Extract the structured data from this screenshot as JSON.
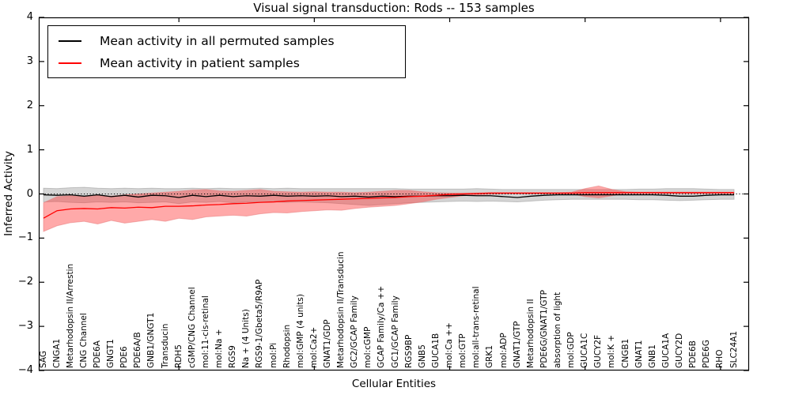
{
  "title": "Visual signal transduction: Rods -- 153 samples",
  "legend": {
    "items": [
      {
        "label": "Mean activity in all permuted samples",
        "color": "#000000"
      },
      {
        "label": "Mean activity in patient samples",
        "color": "#ff0000"
      }
    ]
  },
  "axes": {
    "ylabel": "Inferred Activity",
    "xlabel": "Cellular Entities",
    "yticklabels": [
      "4",
      "3",
      "2",
      "1",
      "0",
      "−1",
      "−2",
      "−3",
      "−4"
    ]
  },
  "chart_data": {
    "type": "line",
    "title": "Visual signal transduction: Rods -- 153 samples",
    "xlabel": "Cellular Entities",
    "ylabel": "Inferred Activity",
    "ylim": [
      -4,
      4
    ],
    "grid": false,
    "legend_position": "upper left",
    "zero_line": {
      "style": "dotted",
      "color": "#000000",
      "y": 0
    },
    "top_tick_indices": [
      10,
      20,
      30,
      40,
      50
    ],
    "categories": [
      "SAG",
      "CNGA1",
      "Metarhodopsin II/Arrestin",
      "CNG Channel",
      "PDE6A",
      "GNGT1",
      "PDE6",
      "PDE6A/B",
      "GNB1/GNGT1",
      "Transducin",
      "RDH5",
      "cGMP/CNG Channel",
      "mol:11-cis-retinal",
      "mol:Na +",
      "RGS9",
      "Na + (4 Units)",
      "RGS9-1/Gbeta5/R9AP",
      "mol:Pi",
      "Rhodopsin",
      "mol:GMP (4 units)",
      "mol:Ca2+",
      "GNAT1/GDP",
      "Metarhodopsin II/Transducin",
      "GC2/GCAP Family",
      "mol:cGMP",
      "GCAP Family/Ca ++",
      "GC1/GCAP Family",
      "RGS9BP",
      "GNB5",
      "GUCA1B",
      "mol:Ca ++",
      "mol:GTP",
      "mol:all-trans-retinal",
      "GRK1",
      "mol:ADP",
      "GNAT1/GTP",
      "Metarhodopsin II",
      "PDE6G/GNAT1/GTP",
      "absorption of light",
      "mol:GDP",
      "GUCA1C",
      "GUCY2F",
      "mol:K +",
      "CNGB1",
      "GNAT1",
      "GNB1",
      "GUCA1A",
      "GUCY2D",
      "PDE6B",
      "PDE6G",
      "RHO",
      "SLC24A1"
    ],
    "series": [
      {
        "name": "Mean activity in all permuted samples",
        "color": "#000000",
        "band_color": "#808080",
        "band_edge": "#9a9a9a",
        "band_opacity": 0.33,
        "values": [
          -0.02,
          -0.03,
          -0.02,
          -0.05,
          -0.02,
          -0.06,
          -0.03,
          -0.07,
          -0.03,
          -0.04,
          -0.08,
          -0.03,
          -0.06,
          -0.03,
          -0.06,
          -0.04,
          -0.05,
          -0.03,
          -0.05,
          -0.04,
          -0.05,
          -0.04,
          -0.06,
          -0.05,
          -0.07,
          -0.05,
          -0.06,
          -0.05,
          -0.05,
          -0.04,
          -0.04,
          -0.03,
          -0.04,
          -0.04,
          -0.06,
          -0.08,
          -0.05,
          -0.03,
          -0.02,
          -0.02,
          -0.02,
          -0.02,
          -0.02,
          -0.02,
          -0.02,
          -0.02,
          -0.03,
          -0.05,
          -0.05,
          -0.03,
          -0.02,
          -0.02
        ],
        "band_high": [
          0.13,
          0.12,
          0.14,
          0.15,
          0.13,
          0.12,
          0.13,
          0.12,
          0.13,
          0.12,
          0.12,
          0.13,
          0.12,
          0.13,
          0.12,
          0.12,
          0.13,
          0.12,
          0.13,
          0.12,
          0.12,
          0.12,
          0.12,
          0.12,
          0.12,
          0.12,
          0.12,
          0.11,
          0.11,
          0.11,
          0.11,
          0.11,
          0.12,
          0.11,
          0.1,
          0.1,
          0.1,
          0.1,
          0.1,
          0.1,
          0.1,
          0.1,
          0.1,
          0.1,
          0.11,
          0.11,
          0.12,
          0.12,
          0.12,
          0.11,
          0.1,
          0.1
        ],
        "band_low": [
          -0.18,
          -0.17,
          -0.19,
          -0.2,
          -0.18,
          -0.19,
          -0.18,
          -0.2,
          -0.19,
          -0.18,
          -0.22,
          -0.18,
          -0.19,
          -0.17,
          -0.2,
          -0.18,
          -0.19,
          -0.18,
          -0.19,
          -0.18,
          -0.19,
          -0.2,
          -0.22,
          -0.24,
          -0.26,
          -0.24,
          -0.22,
          -0.2,
          -0.19,
          -0.18,
          -0.17,
          -0.16,
          -0.17,
          -0.16,
          -0.17,
          -0.18,
          -0.16,
          -0.14,
          -0.13,
          -0.12,
          -0.12,
          -0.12,
          -0.12,
          -0.12,
          -0.13,
          -0.13,
          -0.14,
          -0.15,
          -0.14,
          -0.13,
          -0.12,
          -0.12
        ]
      },
      {
        "name": "Mean activity in patient samples",
        "color": "#ff0000",
        "band_color": "#ff3333",
        "band_edge": "#e87c7c",
        "band_opacity": 0.42,
        "values": [
          -0.55,
          -0.38,
          -0.34,
          -0.33,
          -0.34,
          -0.31,
          -0.32,
          -0.3,
          -0.31,
          -0.28,
          -0.28,
          -0.27,
          -0.25,
          -0.24,
          -0.22,
          -0.21,
          -0.19,
          -0.18,
          -0.16,
          -0.15,
          -0.14,
          -0.13,
          -0.12,
          -0.11,
          -0.1,
          -0.09,
          -0.08,
          -0.06,
          -0.05,
          -0.03,
          -0.01,
          0.0,
          0.01,
          0.02,
          0.02,
          0.02,
          0.02,
          0.02,
          0.02,
          0.02,
          0.03,
          0.03,
          0.03,
          0.03,
          0.03,
          0.03,
          0.03,
          0.03,
          0.03,
          0.03,
          0.03,
          0.03
        ],
        "band_high": [
          -0.2,
          -0.06,
          -0.04,
          -0.06,
          -0.03,
          -0.05,
          -0.02,
          0.0,
          0.02,
          0.04,
          0.06,
          0.09,
          0.1,
          0.07,
          0.06,
          0.08,
          0.1,
          0.06,
          0.05,
          0.04,
          0.05,
          0.04,
          0.04,
          0.03,
          0.04,
          0.06,
          0.08,
          0.08,
          0.05,
          0.03,
          0.02,
          0.02,
          0.02,
          0.03,
          0.03,
          0.03,
          0.03,
          0.03,
          0.03,
          0.04,
          0.12,
          0.18,
          0.1,
          0.05,
          0.04,
          0.04,
          0.04,
          0.04,
          0.04,
          0.04,
          0.04,
          0.04
        ],
        "band_low": [
          -0.85,
          -0.72,
          -0.65,
          -0.62,
          -0.68,
          -0.6,
          -0.66,
          -0.62,
          -0.58,
          -0.62,
          -0.55,
          -0.58,
          -0.52,
          -0.5,
          -0.48,
          -0.5,
          -0.45,
          -0.42,
          -0.43,
          -0.4,
          -0.38,
          -0.36,
          -0.37,
          -0.33,
          -0.3,
          -0.28,
          -0.26,
          -0.22,
          -0.18,
          -0.12,
          -0.08,
          -0.04,
          -0.02,
          -0.01,
          0.0,
          0.0,
          0.0,
          0.0,
          0.0,
          0.0,
          -0.06,
          -0.09,
          -0.04,
          0.01,
          0.01,
          0.01,
          0.01,
          0.01,
          0.01,
          0.01,
          0.01,
          0.01
        ]
      }
    ]
  }
}
